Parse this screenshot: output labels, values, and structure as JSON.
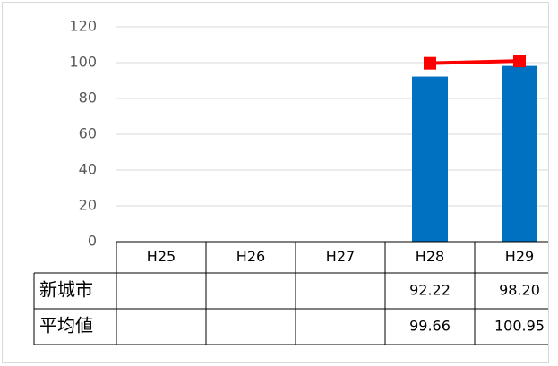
{
  "chart_data": {
    "type": "bar",
    "categories": [
      "H25",
      "H26",
      "H27",
      "H28",
      "H29"
    ],
    "series": [
      {
        "name": "新城市",
        "type": "bar",
        "color": "#0070c0",
        "values": [
          null,
          null,
          null,
          92.22,
          98.2
        ],
        "value_labels": [
          null,
          null,
          null,
          "92.22",
          "98.20"
        ]
      },
      {
        "name": "平均値",
        "type": "line",
        "color": "#ff0000",
        "values": [
          null,
          null,
          null,
          99.66,
          100.95
        ],
        "value_labels": [
          null,
          null,
          null,
          "99.66",
          "100.95"
        ]
      }
    ],
    "ylim": [
      0,
      120
    ],
    "yticks": [
      0,
      20,
      40,
      60,
      80,
      100,
      120
    ],
    "grid": true,
    "data_table": true
  }
}
